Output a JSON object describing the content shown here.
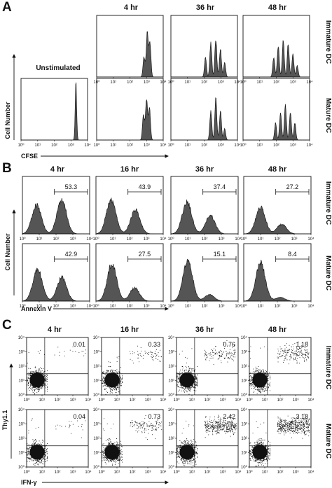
{
  "colors": {
    "fill": "#555555",
    "ink": "#111111",
    "dot": "#111111"
  },
  "panels": {
    "A": {
      "letter": "A",
      "columns": [
        "4 hr",
        "36 hr",
        "48 hr"
      ],
      "rows": [
        "Immature DC",
        "Mature DC"
      ],
      "unstimulated_label": "Unstimulated",
      "y_title": "Cell Number",
      "x_title": "CFSE"
    },
    "B": {
      "letter": "B",
      "columns": [
        "4 hr",
        "16 hr",
        "36 hr",
        "48 hr"
      ],
      "rows": [
        "Immature DC",
        "Mature DC"
      ],
      "y_title": "Cell Number",
      "x_title": "Annexin V"
    },
    "C": {
      "letter": "C",
      "columns": [
        "4 hr",
        "16 hr",
        "36 hr",
        "48 hr"
      ],
      "rows": [
        "Immature DC",
        "Mature DC"
      ],
      "y_title": "Thy1.1",
      "x_title": "IFN-γ"
    }
  },
  "chart_data": [
    {
      "panel": "A",
      "type": "area",
      "x_scale": "log",
      "xlim": [
        1,
        10000
      ],
      "x_ticks": [
        "10⁰",
        "10¹",
        "10²",
        "10³",
        "10⁴"
      ],
      "series": [
        {
          "condition": "Unstimulated",
          "peaks": [
            {
              "x": 2000,
              "h": 1.0
            }
          ]
        },
        {
          "row": "Immature DC",
          "time": "4 hr",
          "peaks": [
            {
              "x": 700,
              "h": 0.35
            },
            {
              "x": 1100,
              "h": 0.8
            },
            {
              "x": 1600,
              "h": 0.6
            }
          ]
        },
        {
          "row": "Immature DC",
          "time": "36 hr",
          "peaks": [
            {
              "x": 120,
              "h": 0.35
            },
            {
              "x": 250,
              "h": 0.6
            },
            {
              "x": 500,
              "h": 0.68
            },
            {
              "x": 950,
              "h": 0.5
            },
            {
              "x": 1700,
              "h": 0.25
            }
          ]
        },
        {
          "row": "Immature DC",
          "time": "48 hr",
          "peaks": [
            {
              "x": 70,
              "h": 0.35
            },
            {
              "x": 130,
              "h": 0.55
            },
            {
              "x": 260,
              "h": 0.65
            },
            {
              "x": 520,
              "h": 0.6
            },
            {
              "x": 1000,
              "h": 0.4
            },
            {
              "x": 1800,
              "h": 0.2
            }
          ]
        },
        {
          "row": "Mature DC",
          "time": "4 hr",
          "peaks": [
            {
              "x": 650,
              "h": 0.45
            },
            {
              "x": 1000,
              "h": 0.72
            },
            {
              "x": 1500,
              "h": 0.55
            }
          ]
        },
        {
          "row": "Mature DC",
          "time": "36 hr",
          "peaks": [
            {
              "x": 250,
              "h": 0.5
            },
            {
              "x": 500,
              "h": 0.72
            },
            {
              "x": 950,
              "h": 0.5
            },
            {
              "x": 1700,
              "h": 0.2
            }
          ]
        },
        {
          "row": "Mature DC",
          "time": "48 hr",
          "peaks": [
            {
              "x": 90,
              "h": 0.3
            },
            {
              "x": 180,
              "h": 0.5
            },
            {
              "x": 350,
              "h": 0.62
            },
            {
              "x": 700,
              "h": 0.5
            },
            {
              "x": 1300,
              "h": 0.3
            }
          ]
        }
      ]
    },
    {
      "panel": "B",
      "type": "area",
      "x_scale": "log",
      "xlim": [
        1,
        10000
      ],
      "x_ticks": [
        "10⁰",
        "10¹",
        "10²",
        "10³",
        "10⁴"
      ],
      "gate": [
        80,
        10000
      ],
      "series": [
        {
          "row": "Immature DC",
          "time": "4 hr",
          "percent": "53.3",
          "peaks": [
            {
              "x": 7,
              "h": 0.55
            },
            {
              "x": 220,
              "h": 0.65
            }
          ]
        },
        {
          "row": "Immature DC",
          "time": "16 hr",
          "percent": "43.9",
          "peaks": [
            {
              "x": 8,
              "h": 0.65
            },
            {
              "x": 220,
              "h": 0.45
            }
          ]
        },
        {
          "row": "Immature DC",
          "time": "36 hr",
          "percent": "37.4",
          "peaks": [
            {
              "x": 9,
              "h": 0.6
            },
            {
              "x": 220,
              "h": 0.35
            }
          ]
        },
        {
          "row": "Immature DC",
          "time": "48 hr",
          "percent": "27.2",
          "peaks": [
            {
              "x": 10,
              "h": 0.5
            },
            {
              "x": 180,
              "h": 0.18
            }
          ]
        },
        {
          "row": "Mature DC",
          "time": "4 hr",
          "percent": "42.9",
          "peaks": [
            {
              "x": 8,
              "h": 0.6
            },
            {
              "x": 220,
              "h": 0.45
            }
          ]
        },
        {
          "row": "Mature DC",
          "time": "16 hr",
          "percent": "27.5",
          "peaks": [
            {
              "x": 9,
              "h": 0.7
            },
            {
              "x": 200,
              "h": 0.25
            }
          ]
        },
        {
          "row": "Mature DC",
          "time": "36 hr",
          "percent": "15.1",
          "peaks": [
            {
              "x": 10,
              "h": 0.78
            },
            {
              "x": 200,
              "h": 0.12
            }
          ]
        },
        {
          "row": "Mature DC",
          "time": "48 hr",
          "percent": "8.4",
          "peaks": [
            {
              "x": 10,
              "h": 0.72
            },
            {
              "x": 150,
              "h": 0.07
            }
          ]
        }
      ]
    },
    {
      "panel": "C",
      "type": "scatter",
      "x_scale": "log",
      "y_scale": "log",
      "xlim": [
        1,
        10000
      ],
      "ylim": [
        1,
        10000
      ],
      "x_ticks": [
        "10⁰",
        "10¹",
        "10²",
        "10³",
        "10⁴"
      ],
      "y_ticks": [
        "10⁰",
        "10¹",
        "10²",
        "10³",
        "10⁴"
      ],
      "quadrant_gate": {
        "x": 15,
        "y": 30
      },
      "series": [
        {
          "row": "Immature DC",
          "time": "4 hr",
          "percent": "0.01",
          "upper_right_density": 0.01
        },
        {
          "row": "Immature DC",
          "time": "16 hr",
          "percent": "0.33",
          "upper_right_density": 0.33
        },
        {
          "row": "Immature DC",
          "time": "36 hr",
          "percent": "0.76",
          "upper_right_density": 0.76
        },
        {
          "row": "Immature DC",
          "time": "48 hr",
          "percent": "1.18",
          "upper_right_density": 1.18
        },
        {
          "row": "Mature DC",
          "time": "4 hr",
          "percent": "0.04",
          "upper_right_density": 0.04
        },
        {
          "row": "Mature DC",
          "time": "16 hr",
          "percent": "0.73",
          "upper_right_density": 0.73
        },
        {
          "row": "Mature DC",
          "time": "36 hr",
          "percent": "2.42",
          "upper_right_density": 2.42
        },
        {
          "row": "Mature DC",
          "time": "48 hr",
          "percent": "3.18",
          "upper_right_density": 3.18
        }
      ]
    }
  ]
}
